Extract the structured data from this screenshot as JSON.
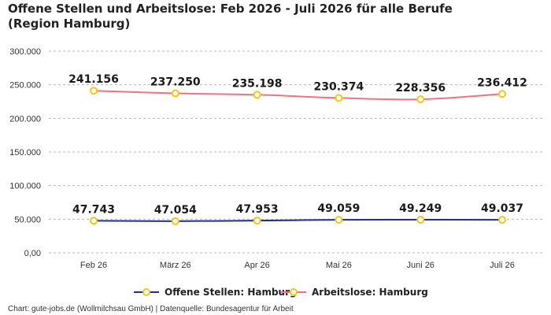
{
  "chart_data": {
    "type": "line",
    "title": "Offene Stellen und Arbeitslose: Feb 2026 - Juli 2026 für alle Berufe (Region Hamburg)",
    "categories": [
      "Feb 26",
      "März 26",
      "Apr 26",
      "Mai 26",
      "Juni 26",
      "Juli 26"
    ],
    "series": [
      {
        "name": "Offene Stellen: Hamburg",
        "values": [
          47743,
          47054,
          47953,
          49059,
          49249,
          49037
        ],
        "labels": [
          "47.743",
          "47.054",
          "47.953",
          "49.059",
          "49.249",
          "49.037"
        ],
        "color": "#1f2f8f"
      },
      {
        "name": "Arbeitslose: Hamburg",
        "values": [
          241156,
          237250,
          235198,
          230374,
          228356,
          236412
        ],
        "labels": [
          "241.156",
          "237.250",
          "235.198",
          "230.374",
          "228.356",
          "236.412"
        ],
        "color": "#f07285"
      }
    ],
    "yticks": [
      {
        "value": 0,
        "label": "0,00"
      },
      {
        "value": 50000,
        "label": "50.000"
      },
      {
        "value": 100000,
        "label": "100.000"
      },
      {
        "value": 150000,
        "label": "150.000"
      },
      {
        "value": 200000,
        "label": "200.000"
      },
      {
        "value": 250000,
        "label": "250.000"
      },
      {
        "value": 300000,
        "label": "300.000"
      }
    ],
    "ylim": [
      0,
      300000
    ],
    "grid": true,
    "legend_position": "bottom",
    "marker_color": "#f5c518"
  },
  "source": "Chart: gute-jobs.de (Wollmilchsau GmbH) | Datenquelle: Bundesagentur für Arbeit"
}
